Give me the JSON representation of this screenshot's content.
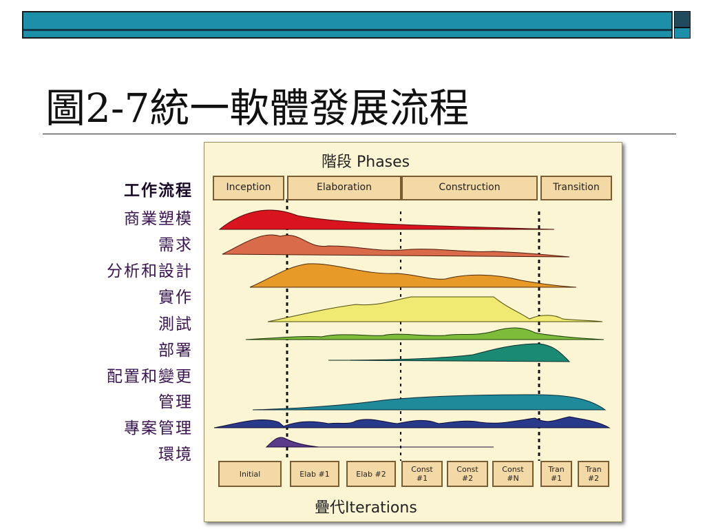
{
  "title": "圖2-7統一軟體發展流程",
  "figure": {
    "phases_title": "階段 Phases",
    "phases": [
      "Inception",
      "Elaboration",
      "Construction",
      "Transition"
    ],
    "iterations_title": "疊代Iterations",
    "iterations": [
      "Initial",
      "Elab #1",
      "Elab #2",
      "Const\n#1",
      "Const\n#2",
      "Const\n#N",
      "Tran\n#1",
      "Tran\n#2"
    ]
  },
  "workflows": {
    "header": "工作流程",
    "items": [
      "商業塑模",
      "需求",
      "分析和設計",
      "實作",
      "測試",
      "部署",
      "配置和變更",
      "管理",
      "專案管理",
      "環境"
    ]
  },
  "colors": {
    "business_modeling": "#d8141e",
    "requirements": "#d96a4a",
    "analysis_design": "#e89a28",
    "implementation": "#f1ea72",
    "test": "#7dbb3a",
    "deployment": "#1a8a72",
    "config_change": "#1e8a9a",
    "project_mgmt": "#2a3a8a",
    "environment": "#5a3a8a"
  }
}
